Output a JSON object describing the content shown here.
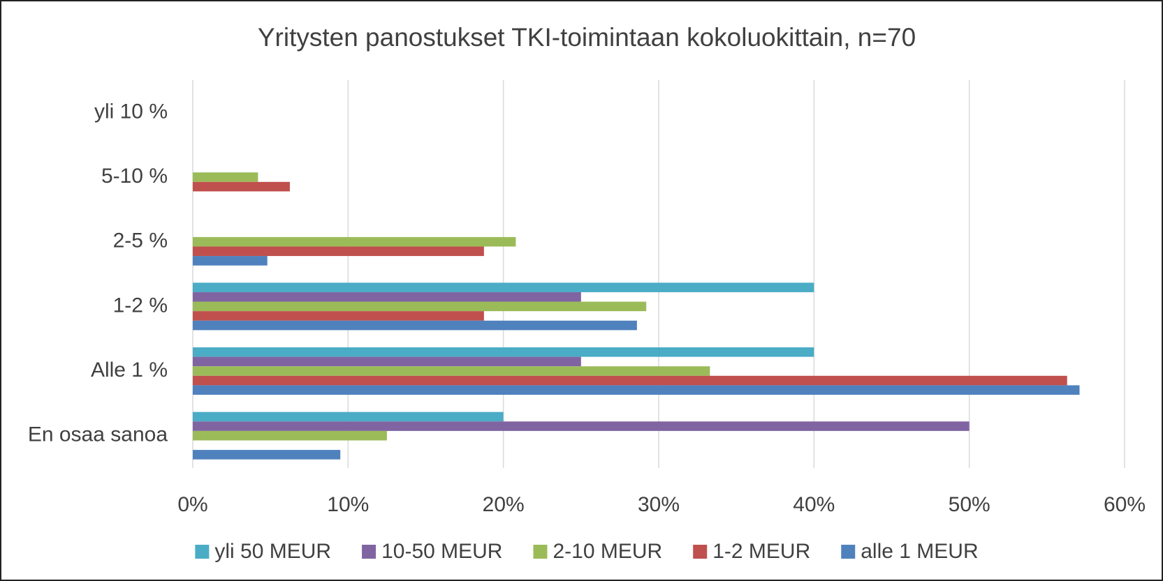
{
  "chart_data": {
    "type": "hbar",
    "title": "Yritysten panostukset TKI-toimintaan kokoluokittain, n=70",
    "categories": [
      "yli 10 %",
      "5-10 %",
      "2-5 %",
      "1-2 %",
      "Alle 1 %",
      "En osaa sanoa"
    ],
    "series": [
      {
        "name": "yli 50 MEUR",
        "color": "#4bacc6",
        "values": [
          0,
          0,
          0,
          40,
          40,
          20
        ]
      },
      {
        "name": "10-50 MEUR",
        "color": "#8064a2",
        "values": [
          0,
          0,
          0,
          25,
          25,
          50
        ]
      },
      {
        "name": "2-10 MEUR",
        "color": "#9bbb59",
        "values": [
          0,
          4.2,
          20.8,
          29.2,
          33.3,
          12.5
        ]
      },
      {
        "name": "1-2 MEUR",
        "color": "#c0504d",
        "values": [
          0,
          6.25,
          18.75,
          18.75,
          56.3,
          0
        ]
      },
      {
        "name": "alle 1 MEUR",
        "color": "#4f81bd",
        "values": [
          0,
          0,
          4.8,
          28.6,
          57.1,
          9.5
        ]
      }
    ],
    "xlim": [
      0,
      60
    ],
    "xticks": [
      {
        "value": 0,
        "label": "0%"
      },
      {
        "value": 10,
        "label": "10%"
      },
      {
        "value": 20,
        "label": "20%"
      },
      {
        "value": 30,
        "label": "30%"
      },
      {
        "value": 40,
        "label": "40%"
      },
      {
        "value": 50,
        "label": "50%"
      },
      {
        "value": 60,
        "label": "60%"
      }
    ],
    "grid": true,
    "legend": "bottom"
  }
}
